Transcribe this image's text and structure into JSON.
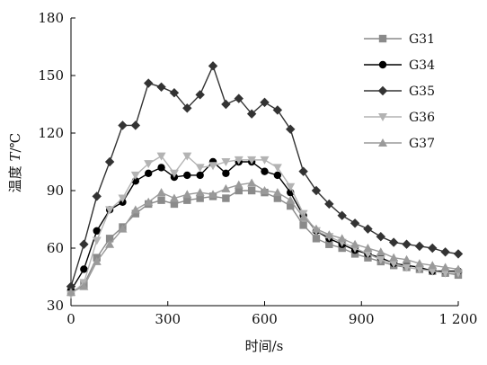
{
  "chart_data": {
    "type": "line",
    "xlabel": "时间/s",
    "ylabel_prefix": "温度 ",
    "ylabel_var": "T",
    "ylabel_unit": "/℃",
    "xlim": [
      0,
      1200
    ],
    "ylim": [
      30,
      180
    ],
    "x_ticks": [
      0,
      300,
      600,
      900,
      1200
    ],
    "x_tick_labels": [
      "0",
      "300",
      "600",
      "900",
      "1 200"
    ],
    "y_ticks": [
      30,
      60,
      90,
      120,
      150,
      180
    ],
    "y_tick_labels": [
      "30",
      "60",
      "90",
      "120",
      "150",
      "180"
    ],
    "grid": false,
    "legend_position": "top-right",
    "series": [
      {
        "name": "G31",
        "color": "#8a8a8a",
        "marker": "square",
        "x": [
          0,
          40,
          80,
          120,
          160,
          200,
          240,
          280,
          320,
          360,
          400,
          440,
          480,
          520,
          560,
          600,
          640,
          680,
          720,
          760,
          800,
          840,
          880,
          920,
          960,
          1000,
          1040,
          1080,
          1120,
          1160,
          1200
        ],
        "y": [
          37,
          41,
          55,
          65,
          71,
          78,
          83,
          85,
          83,
          85,
          86,
          87,
          86,
          90,
          90,
          89,
          86,
          82,
          72,
          65,
          62,
          60,
          57,
          55,
          53,
          51,
          50,
          49,
          48,
          47,
          46
        ]
      },
      {
        "name": "G34",
        "color": "#000000",
        "marker": "circle",
        "x": [
          0,
          40,
          80,
          120,
          160,
          200,
          240,
          280,
          320,
          360,
          400,
          440,
          480,
          520,
          560,
          600,
          640,
          680,
          720,
          760,
          800,
          840,
          880,
          920,
          960,
          1000,
          1040,
          1080,
          1120,
          1160,
          1200
        ],
        "y": [
          38,
          49,
          69,
          80,
          84,
          95,
          99,
          102,
          97,
          98,
          98,
          105,
          99,
          105,
          105,
          100,
          98,
          89,
          77,
          69,
          65,
          62,
          59,
          57,
          55,
          52,
          51,
          50,
          48,
          48,
          48
        ]
      },
      {
        "name": "G35",
        "color": "#333333",
        "marker": "diamond",
        "x": [
          0,
          40,
          80,
          120,
          160,
          200,
          240,
          280,
          320,
          360,
          400,
          440,
          480,
          520,
          560,
          600,
          640,
          680,
          720,
          760,
          800,
          840,
          880,
          920,
          960,
          1000,
          1040,
          1080,
          1120,
          1160,
          1200
        ],
        "y": [
          40,
          62,
          87,
          105,
          124,
          124,
          146,
          144,
          141,
          133,
          140,
          155,
          135,
          138,
          130,
          136,
          132,
          122,
          100,
          90,
          83,
          77,
          73,
          70,
          66,
          63,
          62,
          61,
          60,
          58,
          57
        ]
      },
      {
        "name": "G36",
        "color": "#b3b3b3",
        "marker": "triangle-down",
        "x": [
          0,
          40,
          80,
          120,
          160,
          200,
          240,
          280,
          320,
          360,
          400,
          440,
          480,
          520,
          560,
          600,
          640,
          680,
          720,
          760,
          800,
          840,
          880,
          920,
          960,
          1000,
          1040,
          1080,
          1120,
          1160,
          1200
        ],
        "y": [
          36,
          42,
          64,
          80,
          86,
          98,
          104,
          108,
          99,
          108,
          102,
          103,
          105,
          106,
          106,
          106,
          102,
          92,
          78,
          69,
          66,
          63,
          60,
          57,
          54,
          52,
          50,
          49,
          48,
          47,
          47
        ]
      },
      {
        "name": "G37",
        "color": "#9a9a9a",
        "marker": "triangle-up",
        "x": [
          0,
          40,
          80,
          120,
          160,
          200,
          240,
          280,
          320,
          360,
          400,
          440,
          480,
          520,
          560,
          600,
          640,
          680,
          720,
          760,
          800,
          840,
          880,
          920,
          960,
          1000,
          1040,
          1080,
          1120,
          1160,
          1200
        ],
        "y": [
          37,
          40,
          53,
          62,
          70,
          80,
          84,
          89,
          86,
          88,
          89,
          88,
          91,
          93,
          94,
          90,
          89,
          85,
          76,
          70,
          67,
          65,
          62,
          60,
          58,
          55,
          54,
          52,
          51,
          50,
          49
        ]
      }
    ]
  }
}
